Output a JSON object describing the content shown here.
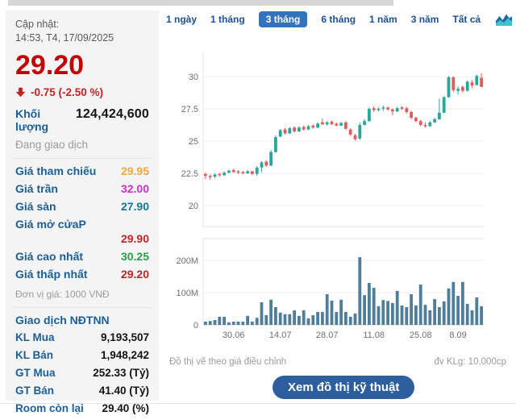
{
  "sidebar": {
    "update_label": "Cập nhật:",
    "update_time": "14:53, T4, 17/09/2025",
    "last_price": "29.20",
    "change_text": "-0.75 (-2.50 %)",
    "volume_label": "Khối lượng",
    "volume_value": "124,424,600",
    "session_status": "Đang giao dịch",
    "price_rows": [
      {
        "label": "Giá tham chiếu",
        "value": "29.95",
        "color": "#f0a63c",
        "wrap": false
      },
      {
        "label": "Giá trần",
        "value": "32.00",
        "color": "#d12cd1",
        "wrap": false
      },
      {
        "label": "Giá sàn",
        "value": "27.90",
        "color": "#0e7a99",
        "wrap": false
      },
      {
        "label": "Giá mở cửaP",
        "value": "29.90",
        "color": "#c42222",
        "wrap": true
      },
      {
        "label": "Giá cao nhất",
        "value": "30.25",
        "color": "#21a04a",
        "wrap": false
      },
      {
        "label": "Giá thấp nhất",
        "value": "29.20",
        "color": "#c42222",
        "wrap": false
      }
    ],
    "unit_note": "Đơn vị giá: 1000 VNĐ",
    "foreign_title": "Giao dịch NĐTNN",
    "foreign_rows": [
      {
        "label": "KL Mua",
        "value": "9,193,507"
      },
      {
        "label": "KL Bán",
        "value": "1,948,242"
      },
      {
        "label": "GT Mua",
        "value": "252.33 (Tỷ)"
      },
      {
        "label": "GT Bán",
        "value": "41.40 (Tỷ)"
      },
      {
        "label": "Room còn lại",
        "value": "29.40 (%)"
      }
    ]
  },
  "tabs": {
    "items": [
      "1 ngày",
      "1 tháng",
      "3 tháng",
      "6 tháng",
      "1 năm",
      "3 năm",
      "Tất cả"
    ],
    "active_index": 2
  },
  "chart_data": {
    "type": "candlestick",
    "title": "",
    "price_axis": {
      "ticks": [
        30,
        27.5,
        25,
        22.5,
        20
      ],
      "tick_labels": [
        "30",
        "27.5",
        "25",
        "22.5",
        "20"
      ],
      "range": [
        19.2,
        31.9
      ]
    },
    "volume_axis": {
      "ticks_m": [
        200,
        100,
        0
      ],
      "tick_labels": [
        "200M",
        "100M",
        "0"
      ],
      "unit": "10,000cp"
    },
    "x_labels": [
      {
        "label": "30.06",
        "index": 6
      },
      {
        "label": "14.07",
        "index": 16
      },
      {
        "label": "28.07",
        "index": 26
      },
      {
        "label": "11.08",
        "index": 36
      },
      {
        "label": "25.08",
        "index": 46
      },
      {
        "label": "8.09",
        "index": 54
      }
    ],
    "ohlc": [
      [
        22.45,
        22.55,
        22.05,
        22.3
      ],
      [
        22.3,
        22.4,
        22.0,
        22.2
      ],
      [
        22.25,
        22.5,
        22.15,
        22.4
      ],
      [
        22.45,
        22.55,
        22.25,
        22.35
      ],
      [
        22.35,
        22.65,
        22.3,
        22.55
      ],
      [
        22.55,
        22.8,
        22.5,
        22.7
      ],
      [
        22.75,
        22.85,
        22.55,
        22.6
      ],
      [
        22.65,
        22.75,
        22.45,
        22.55
      ],
      [
        22.6,
        22.7,
        22.4,
        22.5
      ],
      [
        22.5,
        22.75,
        22.45,
        22.65
      ],
      [
        22.65,
        22.7,
        22.35,
        22.45
      ],
      [
        22.45,
        23.05,
        22.3,
        22.95
      ],
      [
        22.95,
        23.45,
        22.6,
        23.35
      ],
      [
        23.4,
        23.5,
        23.0,
        23.1
      ],
      [
        23.1,
        24.3,
        23.05,
        24.15
      ],
      [
        24.15,
        25.45,
        24.1,
        25.3
      ],
      [
        25.35,
        25.95,
        25.3,
        25.85
      ],
      [
        25.9,
        26.0,
        25.5,
        25.6
      ],
      [
        25.6,
        26.1,
        25.55,
        26.0
      ],
      [
        26.05,
        26.15,
        25.65,
        25.75
      ],
      [
        25.75,
        26.15,
        25.7,
        26.05
      ],
      [
        26.1,
        26.2,
        25.8,
        25.9
      ],
      [
        25.9,
        26.25,
        25.85,
        26.15
      ],
      [
        26.2,
        26.3,
        25.95,
        26.05
      ],
      [
        26.05,
        26.45,
        26.0,
        26.35
      ],
      [
        26.45,
        26.75,
        26.25,
        26.3
      ],
      [
        26.3,
        26.55,
        26.2,
        26.45
      ],
      [
        26.5,
        26.6,
        26.25,
        26.3
      ],
      [
        26.35,
        26.45,
        26.15,
        26.2
      ],
      [
        26.2,
        26.5,
        26.15,
        26.4
      ],
      [
        26.45,
        26.55,
        25.85,
        25.95
      ],
      [
        25.9,
        26.0,
        25.4,
        25.5
      ],
      [
        25.45,
        25.55,
        25.05,
        25.15
      ],
      [
        25.2,
        26.45,
        25.1,
        26.25
      ],
      [
        26.25,
        26.7,
        26.2,
        26.55
      ],
      [
        26.55,
        27.6,
        26.5,
        27.5
      ],
      [
        27.55,
        27.7,
        27.25,
        27.4
      ],
      [
        27.4,
        27.6,
        27.3,
        27.5
      ],
      [
        27.55,
        27.75,
        27.35,
        27.6
      ],
      [
        27.6,
        27.7,
        27.35,
        27.45
      ],
      [
        27.45,
        27.55,
        27.0,
        27.3
      ],
      [
        27.3,
        27.65,
        27.25,
        27.55
      ],
      [
        27.6,
        27.7,
        27.4,
        27.5
      ],
      [
        27.55,
        27.65,
        27.15,
        27.25
      ],
      [
        27.25,
        27.35,
        26.7,
        26.8
      ],
      [
        26.8,
        26.9,
        26.45,
        26.55
      ],
      [
        26.55,
        26.65,
        26.15,
        26.25
      ],
      [
        26.25,
        26.45,
        26.05,
        26.15
      ],
      [
        26.15,
        26.55,
        26.1,
        26.45
      ],
      [
        26.45,
        26.8,
        26.4,
        26.7
      ],
      [
        26.7,
        28.3,
        26.65,
        27.2
      ],
      [
        27.2,
        28.5,
        27.15,
        28.4
      ],
      [
        28.4,
        30.05,
        28.35,
        29.95
      ],
      [
        29.95,
        30.0,
        28.8,
        28.95
      ],
      [
        28.9,
        29.25,
        28.6,
        29.05
      ],
      [
        29.2,
        29.3,
        28.75,
        28.9
      ],
      [
        28.9,
        29.7,
        28.85,
        29.6
      ],
      [
        29.55,
        29.75,
        29.1,
        29.3
      ],
      [
        29.35,
        30.15,
        29.3,
        30.05
      ],
      [
        29.9,
        30.25,
        29.2,
        29.2
      ]
    ],
    "volume_m": [
      10,
      12,
      15,
      25,
      25,
      8,
      10,
      10,
      10,
      28,
      10,
      22,
      70,
      30,
      78,
      55,
      38,
      33,
      33,
      45,
      28,
      45,
      20,
      30,
      40,
      40,
      95,
      75,
      40,
      78,
      40,
      25,
      35,
      210,
      92,
      130,
      115,
      58,
      77,
      74,
      68,
      105,
      60,
      55,
      95,
      60,
      125,
      62,
      45,
      80,
      55,
      73,
      113,
      133,
      90,
      133,
      65,
      45,
      85,
      58
    ],
    "colors": {
      "up": "#2ba69a",
      "down": "#e25c5c",
      "volume": "#4e7e99",
      "grid": "#ececec",
      "axis_text": "#6e6e6e"
    }
  },
  "footer": {
    "note_left": "Đồ thị vẽ theo giá điều chỉnh",
    "note_right": "đv KLg: 10,000cp",
    "button_label": "Xem đồ thị kỹ thuật"
  }
}
